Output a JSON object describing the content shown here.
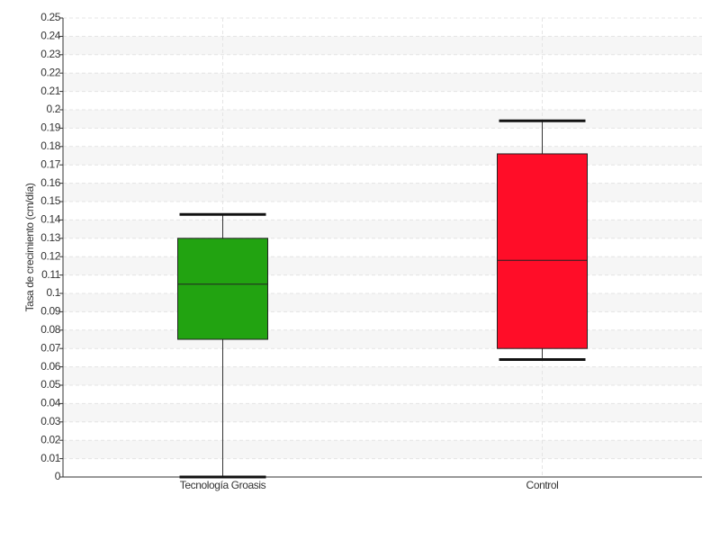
{
  "chart_data": {
    "type": "box",
    "y_label": "Tasa de crecimiento (cm/día)",
    "categories": [
      "Tecnología Groasis",
      "Control"
    ],
    "boxes": [
      {
        "min": 0.0,
        "q1": 0.075,
        "median": 0.105,
        "q3": 0.13,
        "max": 0.143,
        "color": "#22a311"
      },
      {
        "min": 0.064,
        "q1": 0.07,
        "median": 0.118,
        "q3": 0.176,
        "max": 0.194,
        "color": "#ff0d28"
      }
    ],
    "ylim": [
      0,
      0.25
    ],
    "yticks": [
      0,
      0.01,
      0.02,
      0.03,
      0.04,
      0.05,
      0.06,
      0.07,
      0.08,
      0.09,
      0.1,
      0.11,
      0.12,
      0.13,
      0.14,
      0.15,
      0.16,
      0.17,
      0.18,
      0.19,
      0.2,
      0.21,
      0.22,
      0.23,
      0.24,
      0.25
    ],
    "grid": true
  }
}
